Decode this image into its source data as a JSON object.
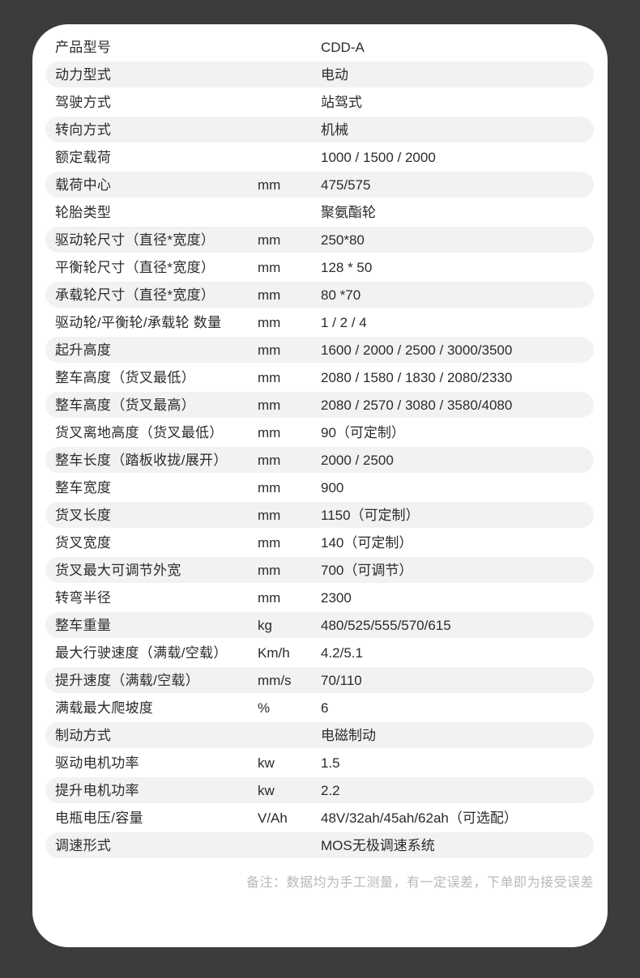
{
  "page": {
    "background_color": "#3c3c3c",
    "card_color": "#ffffff",
    "row_alt_color": "#f2f2f2",
    "text_color": "#2b2b2b",
    "note_color": "#b8b8b8"
  },
  "table": {
    "rows": [
      {
        "label": "产品型号",
        "unit": "",
        "value": "CDD-A",
        "shaded": false
      },
      {
        "label": "动力型式",
        "unit": "",
        "value": "电动",
        "shaded": true
      },
      {
        "label": "驾驶方式",
        "unit": "",
        "value": "站驾式",
        "shaded": false
      },
      {
        "label": "转向方式",
        "unit": "",
        "value": "机械",
        "shaded": true
      },
      {
        "label": "额定载荷",
        "unit": "",
        "value": "1000 / 1500 / 2000",
        "shaded": false
      },
      {
        "label": "载荷中心",
        "unit": "mm",
        "value": "475/575",
        "shaded": true
      },
      {
        "label": "轮胎类型",
        "unit": "",
        "value": "聚氨酯轮",
        "shaded": false
      },
      {
        "label": "驱动轮尺寸（直径*宽度）",
        "unit": "mm",
        "value": "250*80",
        "shaded": true
      },
      {
        "label": "平衡轮尺寸（直径*宽度）",
        "unit": "mm",
        "value": "128 * 50",
        "shaded": false
      },
      {
        "label": "承载轮尺寸（直径*宽度）",
        "unit": "mm",
        "value": "80 *70",
        "shaded": true
      },
      {
        "label": "驱动轮/平衡轮/承载轮 数量",
        "unit": "mm",
        "value": "1 / 2 / 4",
        "shaded": false
      },
      {
        "label": "起升高度",
        "unit": "mm",
        "value": "1600 / 2000 / 2500 / 3000/3500",
        "shaded": true
      },
      {
        "label": "整车高度（货叉最低）",
        "unit": "mm",
        "value": "2080 / 1580 / 1830 / 2080/2330",
        "shaded": false
      },
      {
        "label": "整车高度（货叉最高）",
        "unit": "mm",
        "value": "2080 / 2570 / 3080 / 3580/4080",
        "shaded": true
      },
      {
        "label": "货叉离地高度（货叉最低）",
        "unit": "mm",
        "value": "90（可定制）",
        "shaded": false
      },
      {
        "label": "整车长度（踏板收拢/展开）",
        "unit": "mm",
        "value": "2000 / 2500",
        "shaded": true
      },
      {
        "label": "整车宽度",
        "unit": "mm",
        "value": "900",
        "shaded": false
      },
      {
        "label": "货叉长度",
        "unit": "mm",
        "value": "1150（可定制）",
        "shaded": true
      },
      {
        "label": "货叉宽度",
        "unit": "mm",
        "value": "140（可定制）",
        "shaded": false
      },
      {
        "label": "货叉最大可调节外宽",
        "unit": "mm",
        "value": "700（可调节）",
        "shaded": true
      },
      {
        "label": "转弯半径",
        "unit": "mm",
        "value": "2300",
        "shaded": false
      },
      {
        "label": "整车重量",
        "unit": "kg",
        "value": "480/525/555/570/615",
        "shaded": true
      },
      {
        "label": "最大行驶速度（满载/空载）",
        "unit": "Km/h",
        "value": "4.2/5.1",
        "shaded": false
      },
      {
        "label": "提升速度（满载/空载）",
        "unit": "mm/s",
        "value": "70/110",
        "shaded": true
      },
      {
        "label": "满载最大爬坡度",
        "unit": "%",
        "value": "6",
        "shaded": false
      },
      {
        "label": "制动方式",
        "unit": "",
        "value": "电磁制动",
        "shaded": true
      },
      {
        "label": "驱动电机功率",
        "unit": "kw",
        "value": "1.5",
        "shaded": false
      },
      {
        "label": "提升电机功率",
        "unit": "kw",
        "value": "2.2",
        "shaded": true
      },
      {
        "label": "电瓶电压/容量",
        "unit": "V/Ah",
        "value": "48V/32ah/45ah/62ah（可选配）",
        "shaded": false
      },
      {
        "label": "调速形式",
        "unit": "",
        "value": "MOS无极调速系统",
        "shaded": true
      }
    ]
  },
  "footer": {
    "note": "备注：数据均为手工测量，有一定误差，下单即为接受误差"
  }
}
